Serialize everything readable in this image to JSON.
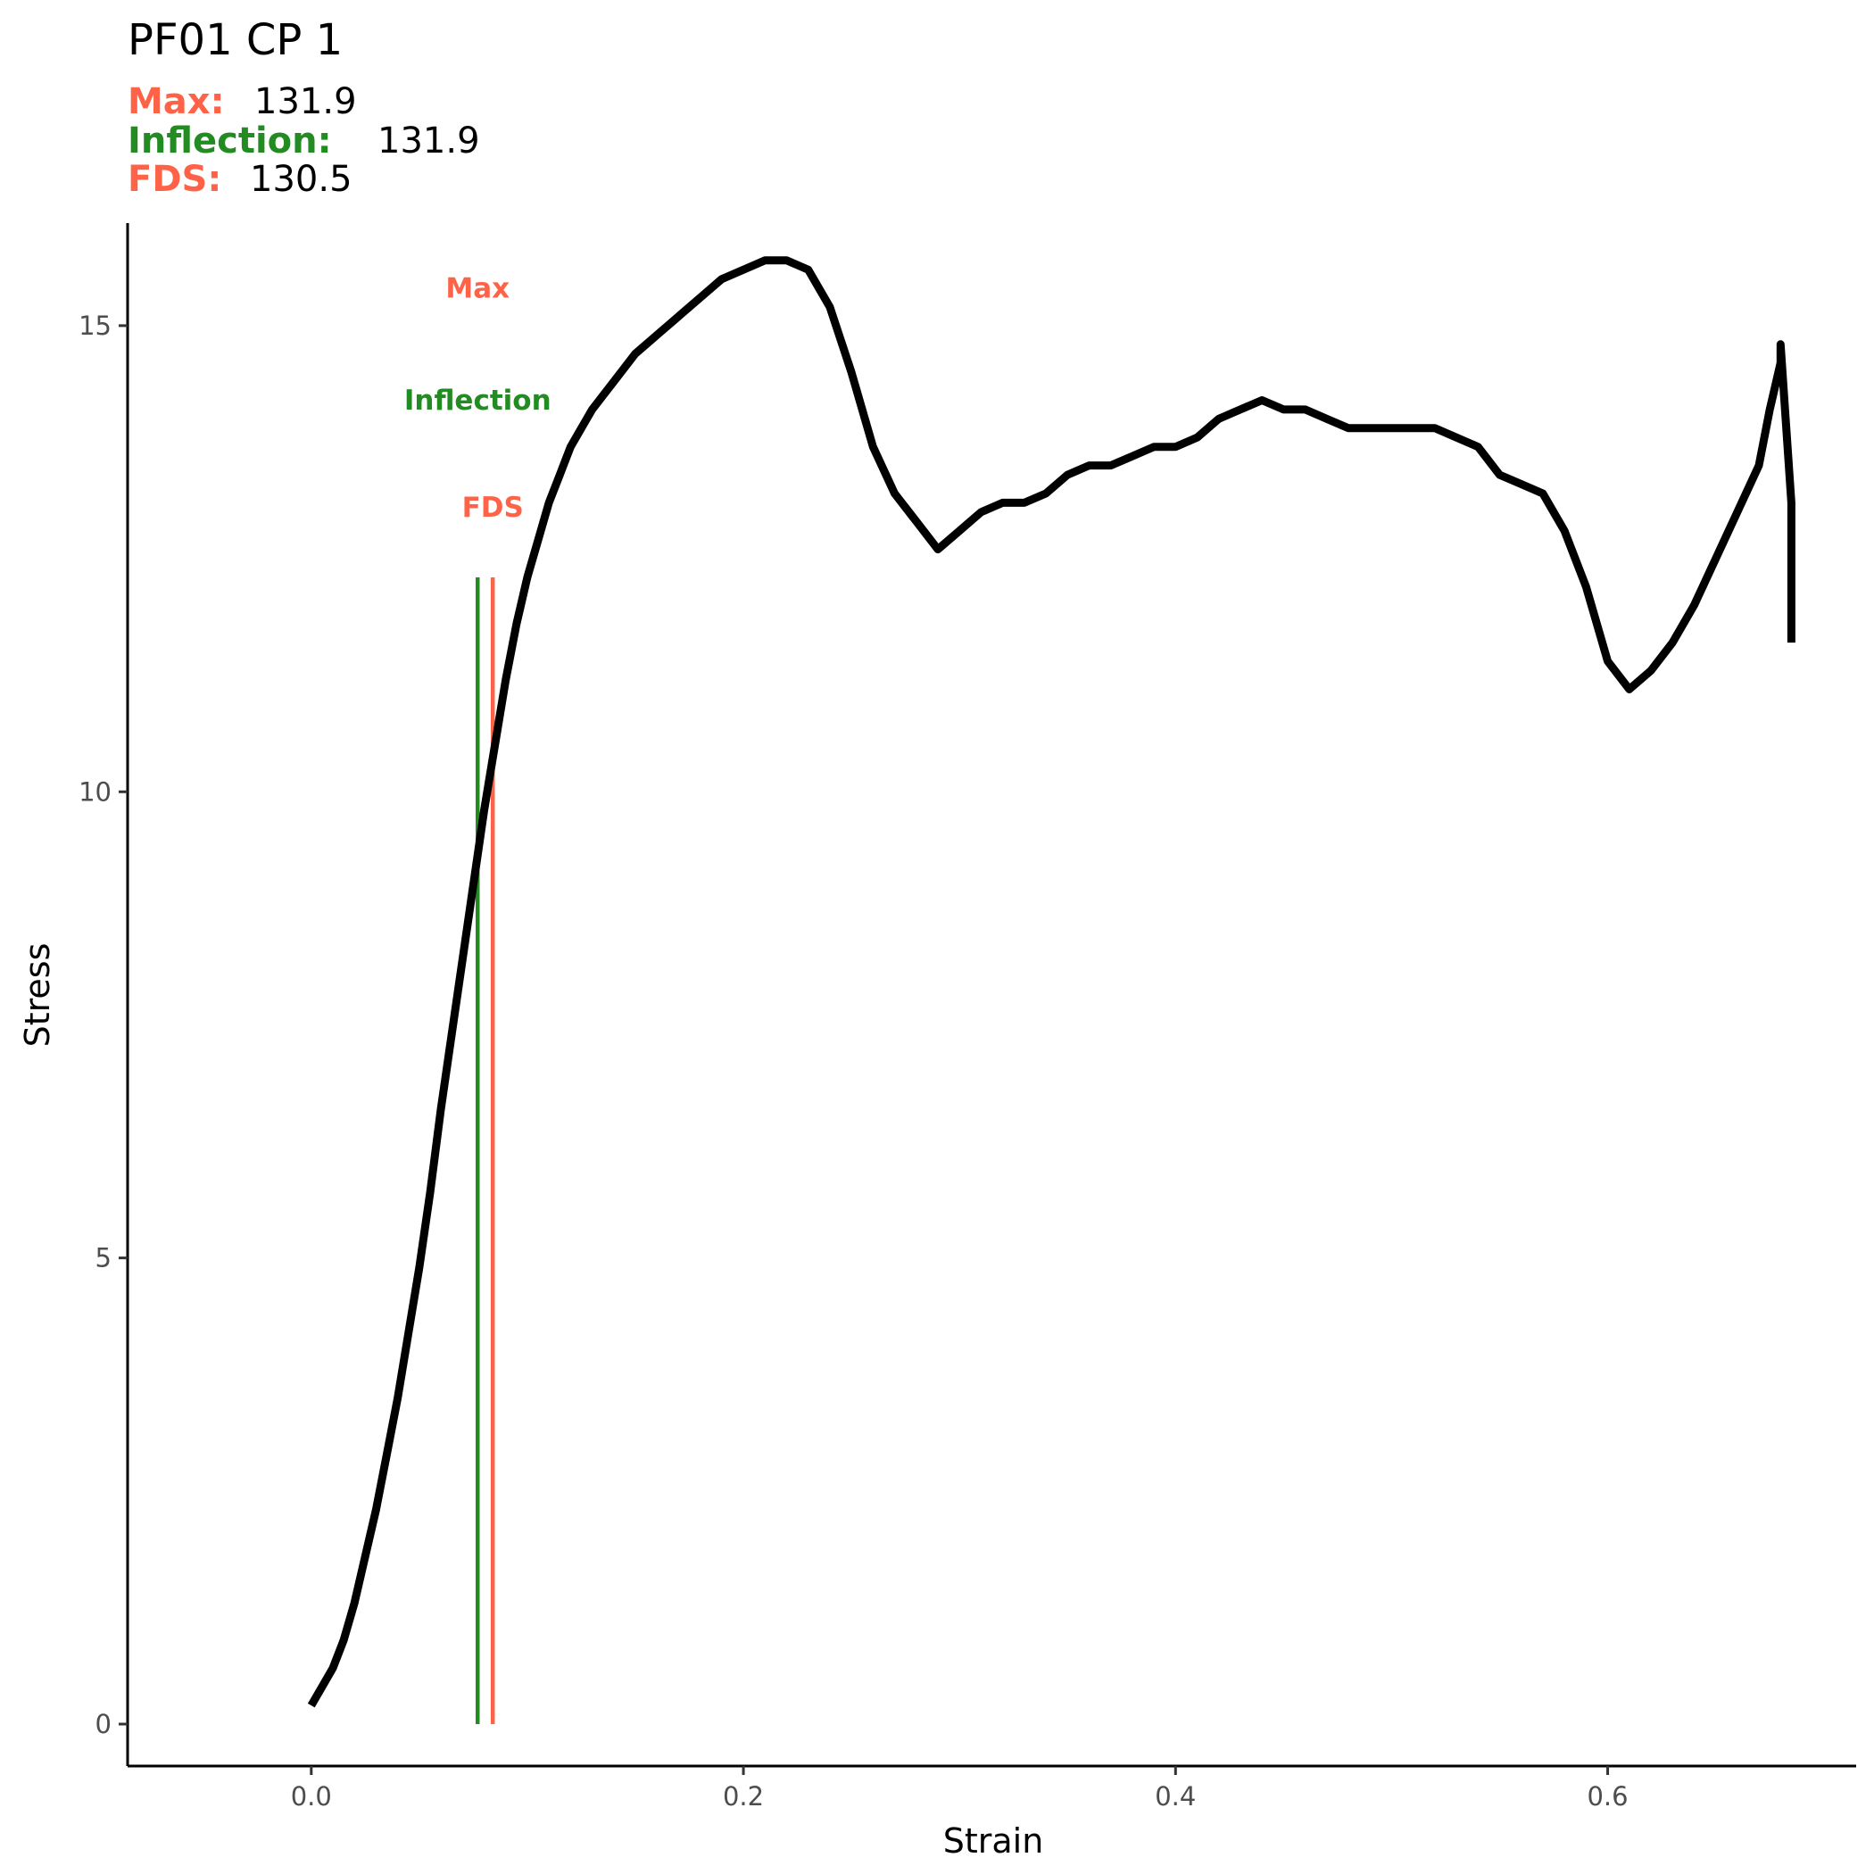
{
  "chart_data": {
    "type": "line",
    "title": "PF01 CP 1",
    "subtitle": [
      {
        "label": "Max:",
        "value": "131.9",
        "color": "#FF6347"
      },
      {
        "label": "Inflection:",
        "value": "131.9",
        "color": "#228B22"
      },
      {
        "label": "FDS:",
        "value": "130.5",
        "color": "#FF6347"
      }
    ],
    "xlabel": "Strain",
    "ylabel": "Stress",
    "xlim": [
      -0.085,
      0.715
    ],
    "ylim": [
      -0.45,
      16.1
    ],
    "x_ticks": [
      0.0,
      0.2,
      0.4,
      0.6
    ],
    "x_tick_labels": [
      "0.0",
      "0.2",
      "0.4",
      "0.6"
    ],
    "y_ticks": [
      0,
      5,
      10,
      15
    ],
    "y_tick_labels": [
      "0",
      "5",
      "10",
      "15"
    ],
    "grid": false,
    "series": [
      {
        "color": "#000000",
        "x": [
          0.0,
          0.005,
          0.01,
          0.015,
          0.02,
          0.025,
          0.03,
          0.035,
          0.04,
          0.045,
          0.05,
          0.055,
          0.06,
          0.065,
          0.07,
          0.075,
          0.08,
          0.085,
          0.09,
          0.095,
          0.1,
          0.105,
          0.11,
          0.115,
          0.12,
          0.125,
          0.13,
          0.14,
          0.15,
          0.16,
          0.17,
          0.18,
          0.19,
          0.2,
          0.21,
          0.22,
          0.23,
          0.24,
          0.25,
          0.26,
          0.27,
          0.28,
          0.29,
          0.3,
          0.31,
          0.32,
          0.33,
          0.34,
          0.35,
          0.36,
          0.37,
          0.38,
          0.39,
          0.4,
          0.41,
          0.42,
          0.43,
          0.44,
          0.45,
          0.46,
          0.47,
          0.48,
          0.49,
          0.5,
          0.51,
          0.52,
          0.53,
          0.54,
          0.55,
          0.56,
          0.57,
          0.58,
          0.59,
          0.6,
          0.61,
          0.62,
          0.63,
          0.64,
          0.65,
          0.66,
          0.67,
          0.675,
          0.68,
          0.68,
          0.685,
          0.685
        ],
        "y": [
          0.2,
          0.4,
          0.6,
          0.9,
          1.3,
          1.8,
          2.3,
          2.9,
          3.5,
          4.2,
          4.9,
          5.7,
          6.6,
          7.4,
          8.2,
          9.0,
          9.8,
          10.5,
          11.2,
          11.8,
          12.3,
          12.7,
          13.1,
          13.4,
          13.7,
          13.9,
          14.1,
          14.4,
          14.7,
          14.9,
          15.1,
          15.3,
          15.5,
          15.6,
          15.7,
          15.7,
          15.6,
          15.2,
          14.5,
          13.7,
          13.2,
          12.9,
          12.6,
          12.8,
          13.0,
          13.1,
          13.1,
          13.2,
          13.4,
          13.5,
          13.5,
          13.6,
          13.7,
          13.7,
          13.8,
          14.0,
          14.1,
          14.2,
          14.1,
          14.1,
          14.0,
          13.9,
          13.9,
          13.9,
          13.9,
          13.9,
          13.8,
          13.7,
          13.4,
          13.3,
          13.2,
          12.8,
          12.2,
          11.4,
          11.1,
          11.3,
          11.6,
          12.0,
          12.5,
          13.0,
          13.5,
          14.1,
          14.6,
          14.8,
          13.1,
          11.6
        ]
      }
    ],
    "vlines": [
      {
        "x": 0.077,
        "color": "#228B22",
        "ymin": 0,
        "ymax": 12.3
      },
      {
        "x": 0.084,
        "color": "#FF6347",
        "ymin": 0,
        "ymax": 12.3
      }
    ],
    "annotations": [
      {
        "text": "Max",
        "color": "#FF6347",
        "x": 0.077,
        "y": 15.3
      },
      {
        "text": "Inflection",
        "color": "#228B22",
        "x": 0.077,
        "y": 14.1
      },
      {
        "text": "FDS",
        "color": "#FF6347",
        "x": 0.084,
        "y": 12.95
      }
    ]
  }
}
